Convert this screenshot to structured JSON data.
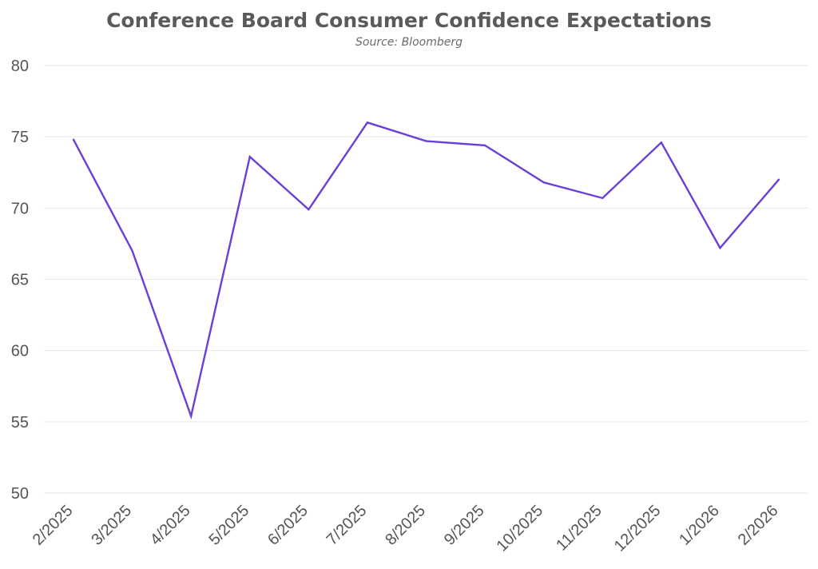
{
  "chart_data": {
    "type": "line",
    "title": "Conference Board Consumer Confidence Expectations",
    "subtitle": "Source: Bloomberg",
    "xlabel": "",
    "ylabel": "",
    "x": [
      "2/2025",
      "3/2025",
      "4/2025",
      "5/2025",
      "6/2025",
      "7/2025",
      "8/2025",
      "9/2025",
      "10/2025",
      "11/2025",
      "12/2025",
      "1/2026",
      "2/2026"
    ],
    "series": [
      {
        "values": [
          74.8,
          67.0,
          55.4,
          73.6,
          69.9,
          76.0,
          74.7,
          74.4,
          71.8,
          70.7,
          74.6,
          67.2,
          72.0
        ],
        "color": "#6a3fd8"
      }
    ],
    "ylim": [
      50,
      80
    ],
    "yticks": [
      50,
      55,
      60,
      65,
      70,
      75,
      80
    ],
    "grid": true,
    "legend": "none"
  }
}
